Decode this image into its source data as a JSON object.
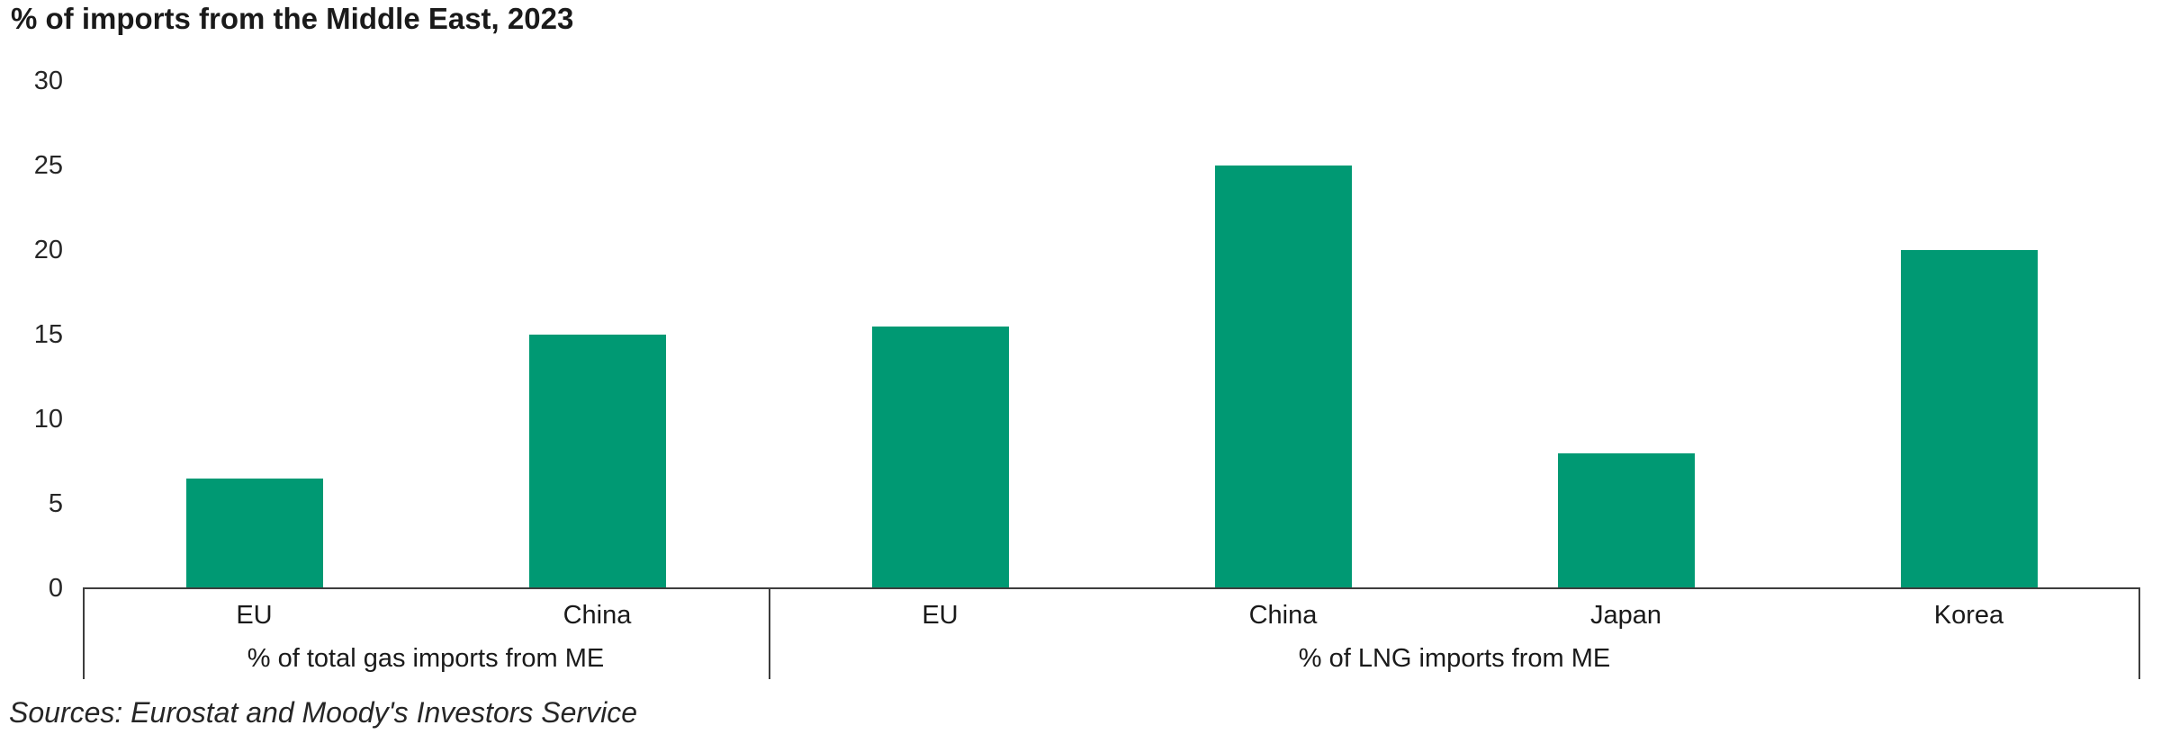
{
  "title": "% of imports from the Middle East, 2023",
  "source_note": "Sources: Eurostat and Moody's Investors Service",
  "colors": {
    "bar": "#009973",
    "axis_line": "#3d3d3d",
    "title_text": "#1a1a1a",
    "label_text": "#1a1a1a",
    "tick_text": "#262626",
    "source_text": "#262626",
    "background": "#ffffff"
  },
  "chart_data": {
    "type": "bar",
    "title": "% of imports from the Middle East, 2023",
    "xlabel": "",
    "ylabel": "",
    "ylim": [
      0,
      30
    ],
    "yticks": [
      0,
      5,
      10,
      15,
      20,
      25,
      30
    ],
    "grid": false,
    "legend": "none",
    "bar_color": "#009973",
    "groups": [
      {
        "label": "% of total gas imports from ME",
        "categories": [
          "EU",
          "China"
        ],
        "values": [
          6.5,
          15
        ]
      },
      {
        "label": "% of LNG imports from ME",
        "categories": [
          "EU",
          "China",
          "Japan",
          "Korea"
        ],
        "values": [
          15.5,
          25,
          8,
          20
        ]
      }
    ]
  }
}
